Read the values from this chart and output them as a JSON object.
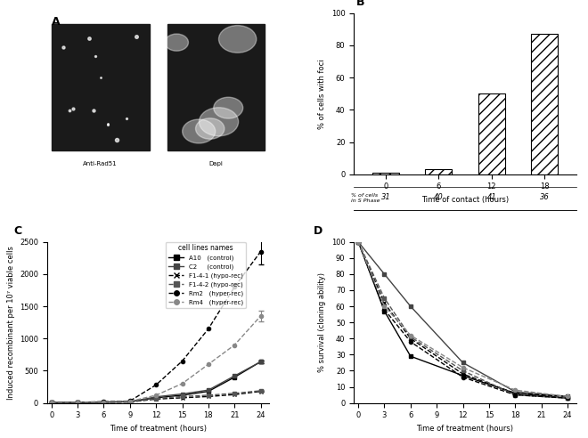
{
  "panel_B": {
    "x": [
      0,
      6,
      12,
      18
    ],
    "y": [
      1,
      3,
      50,
      87
    ],
    "s_phase": [
      31,
      40,
      41,
      36
    ],
    "xlabel": "Time of contact (hours)",
    "ylabel": "% of cells with foci",
    "ylim": [
      0,
      100
    ],
    "yticks": [
      0,
      20,
      40,
      60,
      80,
      100
    ],
    "xticks": [
      0,
      6,
      12,
      18
    ]
  },
  "panel_C": {
    "xlabel": "Time of treatment (hours)",
    "ylabel": "Induced recombinant per 10⁷ viable cells",
    "xticks": [
      0,
      3,
      6,
      9,
      12,
      15,
      18,
      21,
      24
    ],
    "ylim": [
      0,
      2500
    ],
    "yticks": [
      0,
      500,
      1000,
      1500,
      2000,
      2500
    ],
    "legend_title": "cell lines names",
    "series": {
      "A10": {
        "x": [
          0,
          3,
          6,
          9,
          12,
          15,
          18,
          21,
          24
        ],
        "y": [
          5,
          10,
          15,
          20,
          80,
          120,
          180,
          400,
          640
        ],
        "yerr": [
          0,
          0,
          0,
          0,
          0,
          0,
          0,
          0,
          20
        ],
        "style": "-",
        "marker": "s",
        "color": "#000000",
        "label": "A10   (control)"
      },
      "C2": {
        "x": [
          0,
          3,
          6,
          9,
          12,
          15,
          18,
          21,
          24
        ],
        "y": [
          5,
          8,
          12,
          18,
          95,
          140,
          200,
          420,
          640
        ],
        "yerr": [
          0,
          0,
          0,
          0,
          0,
          0,
          0,
          0,
          20
        ],
        "style": "-",
        "marker": "s",
        "color": "#444444",
        "label": "C2     (control)"
      },
      "F1-4-1": {
        "x": [
          0,
          3,
          6,
          9,
          12,
          15,
          18,
          21,
          24
        ],
        "y": [
          5,
          8,
          10,
          15,
          60,
          80,
          100,
          130,
          180
        ],
        "yerr": [
          0,
          0,
          0,
          0,
          0,
          0,
          0,
          0,
          10
        ],
        "style": "--",
        "marker": "x",
        "color": "#000000",
        "label": "F1-4-1 (hypo-rec)"
      },
      "F1-4-2": {
        "x": [
          0,
          3,
          6,
          9,
          12,
          15,
          18,
          21,
          24
        ],
        "y": [
          5,
          8,
          10,
          15,
          70,
          100,
          120,
          150,
          190
        ],
        "yerr": [
          0,
          0,
          0,
          0,
          0,
          0,
          0,
          0,
          10
        ],
        "style": "--",
        "marker": "s",
        "color": "#555555",
        "label": "F1-4-2 (hypo-rec)"
      },
      "Rm2": {
        "x": [
          0,
          3,
          6,
          9,
          12,
          15,
          18,
          21,
          24
        ],
        "y": [
          5,
          10,
          20,
          30,
          280,
          650,
          1150,
          1800,
          2350
        ],
        "yerr": [
          0,
          0,
          0,
          0,
          0,
          0,
          0,
          0,
          200
        ],
        "style": "--",
        "marker": "o",
        "color": "#000000",
        "label": "Rm2   (hyper-rec)"
      },
      "Rm4": {
        "x": [
          0,
          3,
          6,
          9,
          12,
          15,
          18,
          21,
          24
        ],
        "y": [
          5,
          10,
          15,
          25,
          120,
          300,
          600,
          900,
          1350
        ],
        "yerr": [
          0,
          0,
          0,
          0,
          0,
          0,
          0,
          0,
          80
        ],
        "style": "--",
        "marker": "o",
        "color": "#888888",
        "label": "Rm4   (hyper-rec)"
      }
    }
  },
  "panel_D": {
    "xlabel": "Time of treatment (hours)",
    "ylabel": "% survival (cloning ability)",
    "xticks": [
      0,
      3,
      6,
      9,
      12,
      15,
      18,
      21,
      24
    ],
    "ylim": [
      0,
      100
    ],
    "yticks": [
      0,
      10,
      20,
      30,
      40,
      50,
      60,
      70,
      80,
      90,
      100
    ],
    "series": {
      "A10": {
        "x": [
          0,
          3,
          6,
          9,
          12,
          15,
          18,
          21,
          24
        ],
        "y": [
          100,
          57,
          29,
          null,
          17,
          null,
          6,
          null,
          3
        ],
        "style": "-",
        "marker": "s",
        "color": "#000000"
      },
      "C2": {
        "x": [
          0,
          3,
          6,
          9,
          12,
          15,
          18,
          21,
          24
        ],
        "y": [
          100,
          80,
          60,
          null,
          25,
          null,
          7,
          null,
          4
        ],
        "style": "-",
        "marker": "s",
        "color": "#444444"
      },
      "F1-4-1": {
        "x": [
          0,
          3,
          6,
          9,
          12,
          15,
          18,
          21,
          24
        ],
        "y": [
          100,
          62,
          40,
          null,
          18,
          null,
          6,
          null,
          4
        ],
        "style": "--",
        "marker": "x",
        "color": "#000000"
      },
      "F1-4-2": {
        "x": [
          0,
          3,
          6,
          9,
          12,
          15,
          18,
          21,
          24
        ],
        "y": [
          100,
          65,
          41,
          null,
          20,
          null,
          5,
          null,
          3
        ],
        "style": "--",
        "marker": "s",
        "color": "#555555"
      },
      "Rm2": {
        "x": [
          0,
          3,
          6,
          9,
          12,
          15,
          18,
          21,
          24
        ],
        "y": [
          100,
          58,
          38,
          null,
          16,
          null,
          5,
          null,
          3
        ],
        "style": "--",
        "marker": "o",
        "color": "#000000"
      },
      "Rm4": {
        "x": [
          0,
          3,
          6,
          9,
          12,
          15,
          18,
          21,
          24
        ],
        "y": [
          100,
          60,
          42,
          null,
          22,
          null,
          8,
          null,
          4
        ],
        "style": "--",
        "marker": "o",
        "color": "#888888"
      }
    }
  }
}
